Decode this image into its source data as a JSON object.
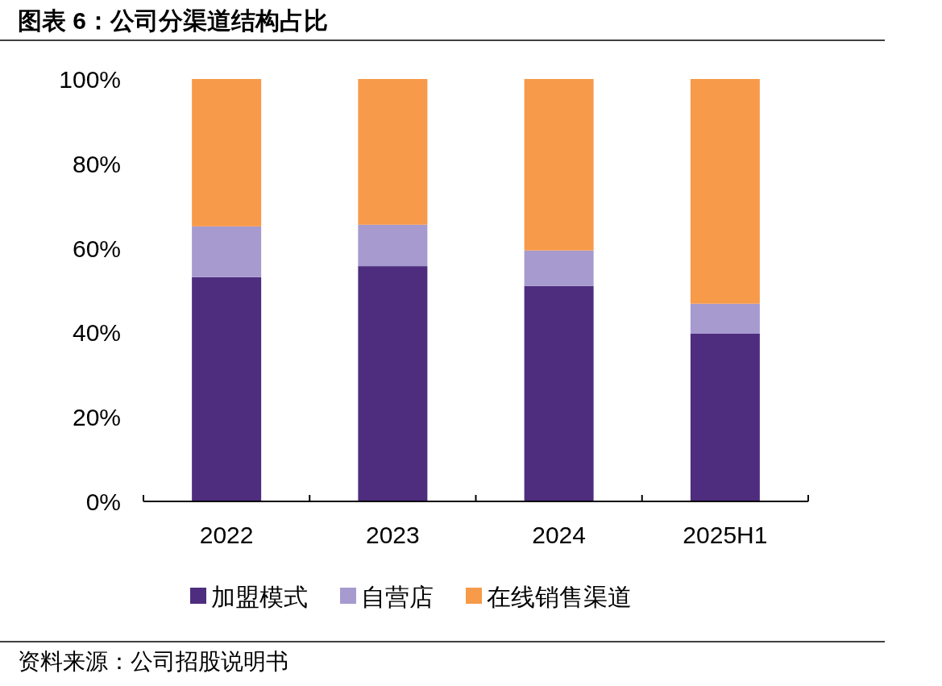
{
  "chart_data": {
    "type": "bar",
    "stacked": true,
    "title": "图表 6：公司分渠道结构占比",
    "categories": [
      "2022",
      "2023",
      "2024",
      "2025H1"
    ],
    "series": [
      {
        "name": "加盟模式",
        "color": "#4e2d7f",
        "values": [
          53.1,
          55.7,
          51.0,
          39.7
        ]
      },
      {
        "name": "自营店",
        "color": "#a69acf",
        "values": [
          12.0,
          9.8,
          8.4,
          7.1
        ]
      },
      {
        "name": "在线销售渠道",
        "color": "#f79a4a",
        "values": [
          34.9,
          34.5,
          40.6,
          53.2
        ]
      }
    ],
    "ylim": [
      0,
      100
    ],
    "yticks": [
      {
        "value": 0,
        "label": "0%"
      },
      {
        "value": 20,
        "label": "20%"
      },
      {
        "value": 40,
        "label": "40%"
      },
      {
        "value": 60,
        "label": "60%"
      },
      {
        "value": 80,
        "label": "80%"
      },
      {
        "value": 100,
        "label": "100%"
      }
    ],
    "grid": false,
    "legend": "bottom",
    "annotations": [
      "资料来源：公司招股说明书"
    ]
  }
}
